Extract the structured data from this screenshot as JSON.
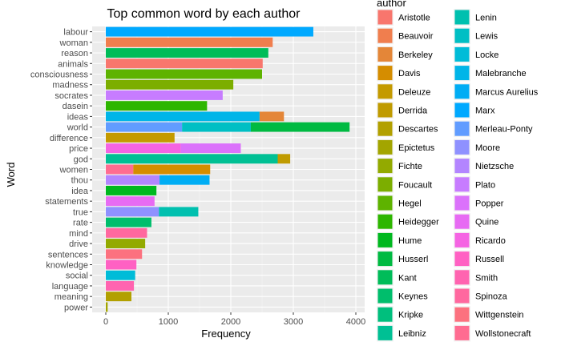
{
  "chart_data": {
    "type": "bar",
    "orientation": "horizontal",
    "stacked": true,
    "title": "Top common word by each author",
    "xlabel": "Frequency",
    "ylabel": "Word",
    "xlim": [
      0,
      4000
    ],
    "xticks": [
      0,
      1000,
      2000,
      3000,
      4000
    ],
    "grid": true,
    "legend": {
      "title": "author",
      "position": "right",
      "entries": [
        {
          "name": "Aristotle",
          "color": "#F8766D"
        },
        {
          "name": "Beauvoir",
          "color": "#F07E4E"
        },
        {
          "name": "Berkeley",
          "color": "#E48638"
        },
        {
          "name": "Davis",
          "color": "#D58D00"
        },
        {
          "name": "Deleuze",
          "color": "#C49A00"
        },
        {
          "name": "Derrida",
          "color": "#C09B00"
        },
        {
          "name": "Descartes",
          "color": "#B2A000"
        },
        {
          "name": "Epictetus",
          "color": "#A3A500"
        },
        {
          "name": "Fichte",
          "color": "#93AA00"
        },
        {
          "name": "Foucault",
          "color": "#7CAE00"
        },
        {
          "name": "Hegel",
          "color": "#5EB300"
        },
        {
          "name": "Heidegger",
          "color": "#2DB600"
        },
        {
          "name": "Hume",
          "color": "#00B81F"
        },
        {
          "name": "Husserl",
          "color": "#00BA42"
        },
        {
          "name": "Kant",
          "color": "#00BC59"
        },
        {
          "name": "Keynes",
          "color": "#00BE6C"
        },
        {
          "name": "Kripke",
          "color": "#00BF7D"
        },
        {
          "name": "Leibniz",
          "color": "#00C094"
        },
        {
          "name": "Lenin",
          "color": "#00C0AF"
        },
        {
          "name": "Lewis",
          "color": "#00BFC4"
        },
        {
          "name": "Locke",
          "color": "#00BCD8"
        },
        {
          "name": "Malebranche",
          "color": "#00B5E8"
        },
        {
          "name": "Marcus Aurelius",
          "color": "#00ADF4"
        },
        {
          "name": "Marx",
          "color": "#00A9FF"
        },
        {
          "name": "Merleau-Ponty",
          "color": "#619CFF"
        },
        {
          "name": "Moore",
          "color": "#8F91FF"
        },
        {
          "name": "Nietzsche",
          "color": "#B385FF"
        },
        {
          "name": "Plato",
          "color": "#C77CFF"
        },
        {
          "name": "Popper",
          "color": "#DB72FB"
        },
        {
          "name": "Quine",
          "color": "#E76BF3"
        },
        {
          "name": "Ricardo",
          "color": "#F564E3"
        },
        {
          "name": "Russell",
          "color": "#FF61C3"
        },
        {
          "name": "Smith",
          "color": "#FF64B0"
        },
        {
          "name": "Spinoza",
          "color": "#FF689F"
        },
        {
          "name": "Wittgenstein",
          "color": "#FC717F"
        },
        {
          "name": "Wollstonecraft",
          "color": "#FF6C91"
        }
      ]
    },
    "categories": [
      "labour",
      "woman",
      "reason",
      "animals",
      "consciousness",
      "madness",
      "socrates",
      "dasein",
      "ideas",
      "world",
      "difference",
      "price",
      "god",
      "women",
      "thou",
      "idea",
      "statements",
      "true",
      "rate",
      "mind",
      "drive",
      "sentences",
      "knowledge",
      "social",
      "language",
      "meaning",
      "power"
    ],
    "bars": [
      {
        "word": "labour",
        "segments": [
          {
            "author": "Marx",
            "value": 3320
          }
        ]
      },
      {
        "word": "woman",
        "segments": [
          {
            "author": "Beauvoir",
            "value": 2670
          }
        ]
      },
      {
        "word": "reason",
        "segments": [
          {
            "author": "Kant",
            "value": 2600
          }
        ]
      },
      {
        "word": "animals",
        "segments": [
          {
            "author": "Aristotle",
            "value": 2510
          }
        ]
      },
      {
        "word": "consciousness",
        "segments": [
          {
            "author": "Hegel",
            "value": 2500
          }
        ]
      },
      {
        "word": "madness",
        "segments": [
          {
            "author": "Foucault",
            "value": 2040
          }
        ]
      },
      {
        "word": "socrates",
        "segments": [
          {
            "author": "Plato",
            "value": 1870
          }
        ]
      },
      {
        "word": "dasein",
        "segments": [
          {
            "author": "Heidegger",
            "value": 1620
          }
        ]
      },
      {
        "word": "ideas",
        "segments": [
          {
            "author": "Malebranche",
            "value": 2460
          },
          {
            "author": "Berkeley",
            "value": 390
          }
        ]
      },
      {
        "word": "world",
        "segments": [
          {
            "author": "Merleau-Ponty",
            "value": 1220
          },
          {
            "author": "Lewis",
            "value": 1100
          },
          {
            "author": "Husserl",
            "value": 1580
          }
        ]
      },
      {
        "word": "difference",
        "segments": [
          {
            "author": "Deleuze",
            "value": 1100
          }
        ]
      },
      {
        "word": "price",
        "segments": [
          {
            "author": "Ricardo",
            "value": 1200
          },
          {
            "author": "Popper",
            "value": 960
          }
        ]
      },
      {
        "word": "god",
        "segments": [
          {
            "author": "Leibniz",
            "value": 2750
          },
          {
            "author": "Derrida",
            "value": 200
          }
        ]
      },
      {
        "word": "women",
        "segments": [
          {
            "author": "Wollstonecraft",
            "value": 440
          },
          {
            "author": "Davis",
            "value": 1230
          }
        ]
      },
      {
        "word": "thou",
        "segments": [
          {
            "author": "Nietzsche",
            "value": 860
          },
          {
            "author": "Marcus Aurelius",
            "value": 800
          }
        ]
      },
      {
        "word": "idea",
        "segments": [
          {
            "author": "Hume",
            "value": 810
          }
        ]
      },
      {
        "word": "statements",
        "segments": [
          {
            "author": "Quine",
            "value": 780
          }
        ]
      },
      {
        "word": "true",
        "segments": [
          {
            "author": "Moore",
            "value": 850
          },
          {
            "author": "Lenin",
            "value": 630
          }
        ]
      },
      {
        "word": "rate",
        "segments": [
          {
            "author": "Keynes",
            "value": 730
          }
        ]
      },
      {
        "word": "mind",
        "segments": [
          {
            "author": "Spinoza",
            "value": 660
          }
        ]
      },
      {
        "word": "drive",
        "segments": [
          {
            "author": "Fichte",
            "value": 630
          }
        ]
      },
      {
        "word": "sentences",
        "segments": [
          {
            "author": "Wittgenstein",
            "value": 580
          }
        ]
      },
      {
        "word": "knowledge",
        "segments": [
          {
            "author": "Russell",
            "value": 490
          }
        ]
      },
      {
        "word": "social",
        "segments": [
          {
            "author": "Locke",
            "value": 470
          }
        ]
      },
      {
        "word": "language",
        "segments": [
          {
            "author": "Smith",
            "value": 450
          }
        ]
      },
      {
        "word": "meaning",
        "segments": [
          {
            "author": "Descartes",
            "value": 410
          }
        ]
      },
      {
        "word": "power",
        "segments": [
          {
            "author": "Epictetus",
            "value": 30
          }
        ]
      }
    ]
  }
}
